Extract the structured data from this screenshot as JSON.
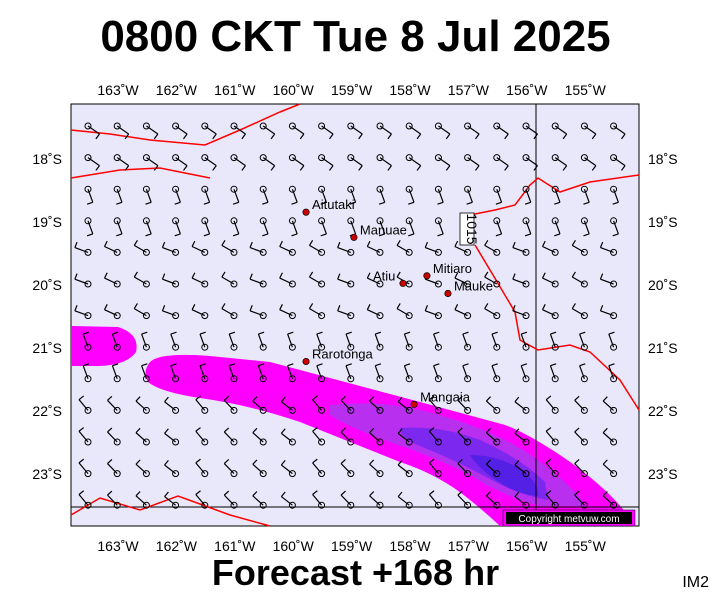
{
  "title": "0800 CKT Tue 8 Jul 2025",
  "footer": "Forecast +168 hr",
  "image_code": "IM2",
  "copyright": "Copyright metvuw.com",
  "isobar_label": "1015",
  "lon_labels": [
    "163˚W",
    "162˚W",
    "161˚W",
    "160˚W",
    "159˚W",
    "158˚W",
    "157˚W",
    "156˚W",
    "155˚W"
  ],
  "lat_labels": [
    "18˚S",
    "19˚S",
    "20˚S",
    "21˚S",
    "22˚S",
    "23˚S"
  ],
  "places": [
    {
      "name": "Aitutaki",
      "lon": -159.78,
      "lat": -18.86
    },
    {
      "name": "Manuae",
      "lon": -158.96,
      "lat": -19.26
    },
    {
      "name": "Atiu",
      "lon": -158.12,
      "lat": -19.99
    },
    {
      "name": "Mitiaro",
      "lon": -157.71,
      "lat": -19.87
    },
    {
      "name": "Mauke",
      "lon": -157.35,
      "lat": -20.15
    },
    {
      "name": "Rarotonga",
      "lon": -159.78,
      "lat": -21.23
    },
    {
      "name": "Mangaia",
      "lon": -157.93,
      "lat": -21.91
    }
  ],
  "colors": {
    "ocean": "#e8e8fa",
    "rain_light": "#ff00ff",
    "rain_mid": "#aa22ee",
    "rain_heavy": "#6a1fe8",
    "isobar": "#ff0000",
    "place_dot": "#cc0000"
  }
}
